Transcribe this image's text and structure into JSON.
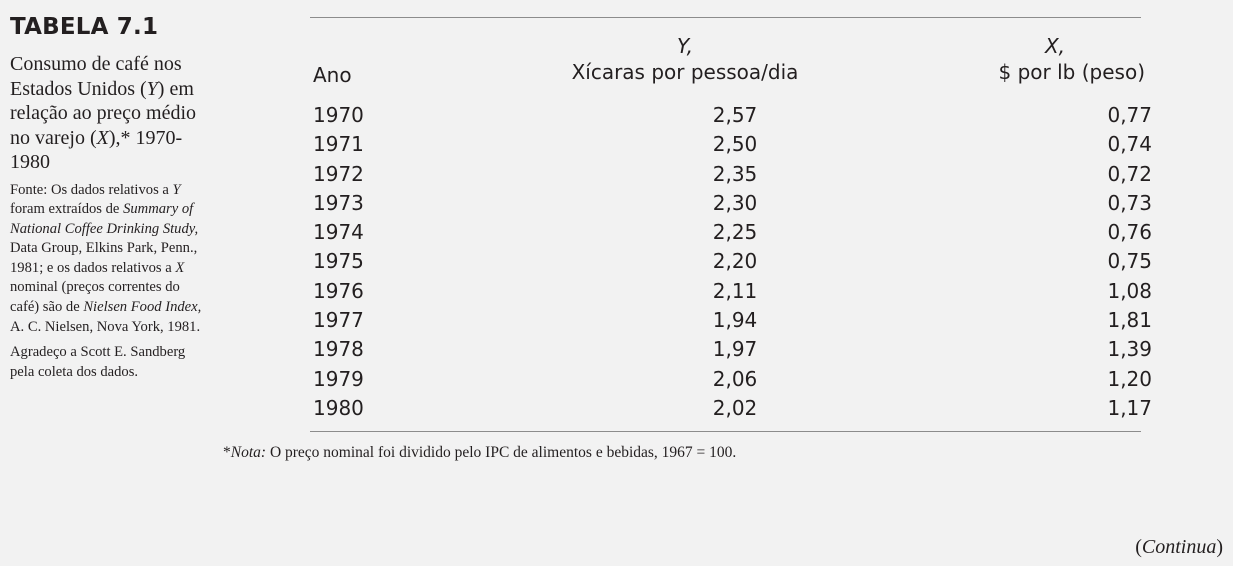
{
  "sidebar": {
    "table_label": "TABELA 7.1",
    "caption_parts": [
      "Consumo de café nos Estados Unidos (",
      "Y",
      ") em relação ao preço médio no varejo (",
      "X",
      "),* 1970-1980"
    ],
    "source_parts": [
      "Fonte: Os dados relativos a ",
      "Y",
      " foram extraídos de ",
      "Summary of National Coffee Drinking Study,",
      " Data Group, Elkins Park, Penn., 1981; e os dados relativos a ",
      "X",
      " nominal (preços correntes do café) são de ",
      "Nielsen Food Index,",
      " A. C. Nielsen, Nova York, 1981."
    ],
    "thanks": "Agradeço a Scott E. Sandberg pela coleta dos dados."
  },
  "table": {
    "headers": {
      "year": "Ano",
      "y_symbol": "Y,",
      "y_label": "Xícaras por pessoa/dia",
      "x_symbol": "X,",
      "x_label": "$ por lb (peso)"
    },
    "rows": [
      {
        "ano": "1970",
        "y": "2,57",
        "x": "0,77"
      },
      {
        "ano": "1971",
        "y": "2,50",
        "x": "0,74"
      },
      {
        "ano": "1972",
        "y": "2,35",
        "x": "0,72"
      },
      {
        "ano": "1973",
        "y": "2,30",
        "x": "0,73"
      },
      {
        "ano": "1974",
        "y": "2,25",
        "x": "0,76"
      },
      {
        "ano": "1975",
        "y": "2,20",
        "x": "0,75"
      },
      {
        "ano": "1976",
        "y": "2,11",
        "x": "1,08"
      },
      {
        "ano": "1977",
        "y": "1,94",
        "x": "1,81"
      },
      {
        "ano": "1978",
        "y": "1,97",
        "x": "1,39"
      },
      {
        "ano": "1979",
        "y": "2,06",
        "x": "1,20"
      },
      {
        "ano": "1980",
        "y": "2,02",
        "x": "1,17"
      }
    ]
  },
  "footnote": {
    "prefix": "*",
    "label": "Nota:",
    "text": " O preço nominal foi dividido pelo IPC de alimentos e bebidas, 1967 = 100."
  },
  "continua": "Continua"
}
